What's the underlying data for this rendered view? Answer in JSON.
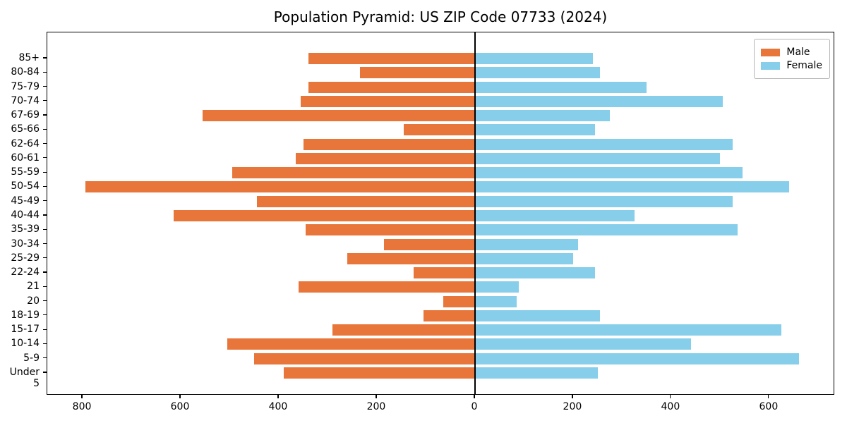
{
  "page": {
    "title": "Population Pyramid: US ZIP Code 07733 (2024)"
  },
  "chart_data": {
    "type": "bar",
    "orientation": "horizontal",
    "subtype": "population-pyramid",
    "title": "Population Pyramid: US ZIP Code 07733 (2024)",
    "xlabel": "",
    "ylabel": "",
    "categories_top_to_bottom": [
      "85+",
      "80-84",
      "75-79",
      "70-74",
      "67-69",
      "65-66",
      "62-64",
      "60-61",
      "55-59",
      "50-54",
      "45-49",
      "40-44",
      "35-39",
      "30-34",
      "25-29",
      "22-24",
      "21",
      "20",
      "18-19",
      "15-17",
      "10-14",
      "5-9",
      "Under 5"
    ],
    "series": [
      {
        "name": "Male",
        "side": "left",
        "color": "#E8763B",
        "values": [
          340,
          235,
          340,
          355,
          555,
          145,
          350,
          365,
          495,
          795,
          445,
          615,
          345,
          185,
          260,
          125,
          360,
          65,
          105,
          290,
          505,
          450,
          390
        ]
      },
      {
        "name": "Female",
        "side": "right",
        "color": "#87CEEB",
        "values": [
          240,
          255,
          350,
          505,
          275,
          245,
          525,
          500,
          545,
          640,
          525,
          325,
          535,
          210,
          200,
          245,
          90,
          85,
          255,
          625,
          440,
          660,
          250
        ]
      }
    ],
    "x_tick_values": [
      -800,
      -600,
      -400,
      -200,
      0,
      200,
      400,
      600
    ],
    "x_tick_labels": [
      "800",
      "600",
      "400",
      "200",
      "0",
      "200",
      "400",
      "600"
    ],
    "xlim": [
      -872,
      734
    ],
    "grid": false,
    "zero_line": true,
    "legend": {
      "position": "upper right",
      "entries": [
        "Male",
        "Female"
      ]
    }
  }
}
